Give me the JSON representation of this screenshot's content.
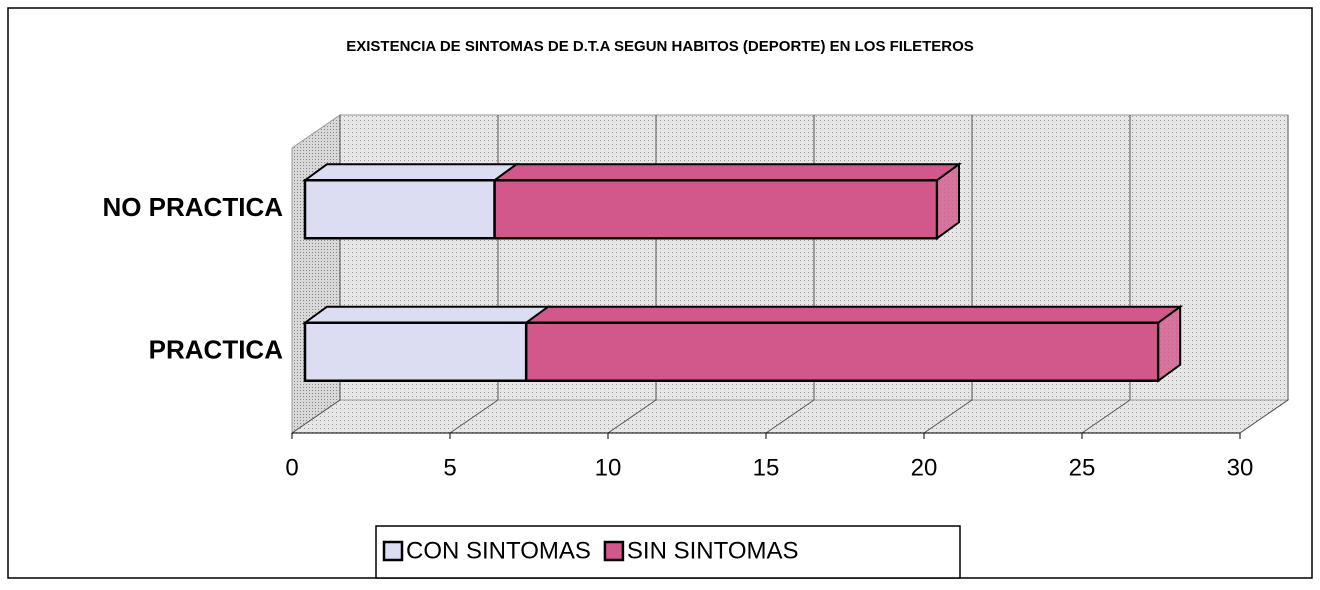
{
  "chart_data": {
    "type": "bar",
    "orientation": "horizontal",
    "stacked": true,
    "title": "EXISTENCIA DE SINTOMAS DE D.T.A SEGUN HABITOS (DEPORTE) EN LOS FILETEROS",
    "categories": [
      "NO PRACTICA",
      "PRACTICA"
    ],
    "series": [
      {
        "name": "CON SINTOMAS",
        "color": "#dcdcf2",
        "values": [
          6,
          7
        ]
      },
      {
        "name": "SIN SINTOMAS",
        "color": "#d2588c",
        "values": [
          14,
          20
        ]
      }
    ],
    "xlim": [
      0,
      30
    ],
    "xticks": [
      0,
      5,
      10,
      15,
      20,
      25,
      30
    ],
    "grid": true,
    "legend": "bottom"
  }
}
